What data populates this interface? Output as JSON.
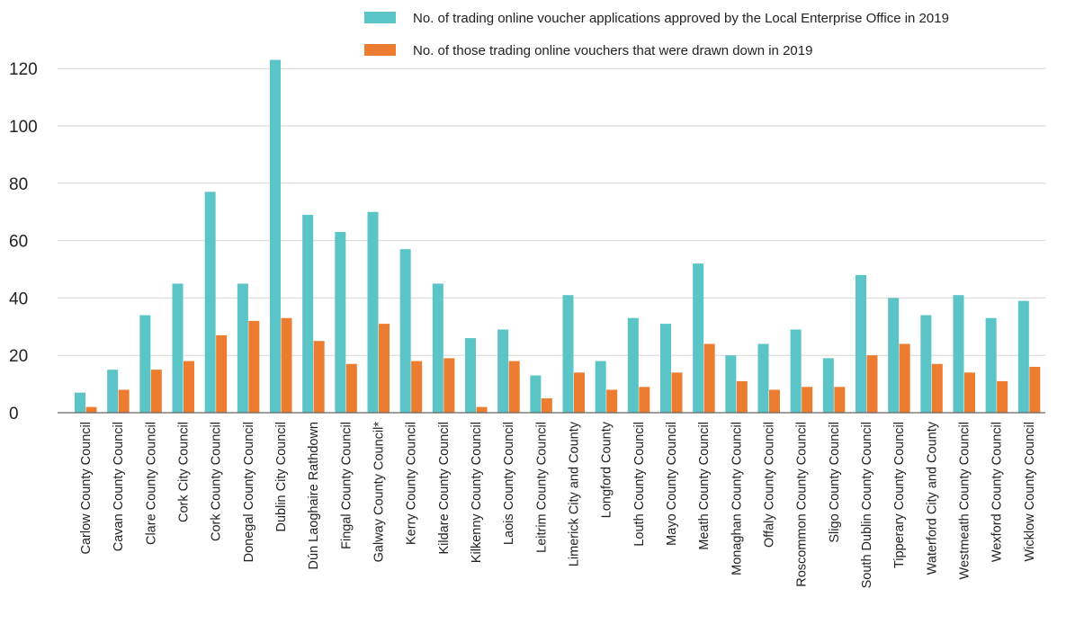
{
  "chart_data": {
    "type": "bar",
    "categories": [
      "Carlow County Council",
      "Cavan County Council",
      "Clare County Council",
      "Cork City Council",
      "Cork County Council",
      "Donegal County Council",
      "Dublin City Council",
      "Dún Laoghaire Rathdown",
      "Fingal County Council",
      "Galway County Council*",
      "Kerry County Council",
      "Kildare County Council",
      "Kilkenny County Council",
      "Laois County Council",
      "Leitrim County Council",
      "Limerick City and County",
      "Longford County",
      "Louth County Council",
      "Mayo County Council",
      "Meath County Council",
      "Monaghan County Council",
      "Offaly County Council",
      "Roscommon County Council",
      "Sligo County Council",
      "South Dublin County Council",
      "Tipperary County Council",
      "Waterford City and County",
      "Westmeath County Council",
      "Wexford County Council",
      "Wicklow County Council"
    ],
    "series": [
      {
        "name": "No. of trading online voucher applications approved by the Local Enterprise Office in 2019",
        "color": "#5bc4c6",
        "values": [
          7,
          15,
          34,
          45,
          77,
          45,
          123,
          69,
          63,
          70,
          57,
          45,
          26,
          29,
          13,
          41,
          18,
          33,
          31,
          52,
          20,
          24,
          29,
          19,
          48,
          40,
          34,
          41,
          33,
          39
        ]
      },
      {
        "name": "No. of those trading online vouchers that were drawn down in 2019",
        "color": "#ec7c30",
        "values": [
          2,
          8,
          15,
          18,
          27,
          32,
          33,
          25,
          17,
          31,
          18,
          19,
          2,
          18,
          5,
          14,
          8,
          9,
          14,
          24,
          11,
          8,
          9,
          9,
          20,
          24,
          17,
          14,
          11,
          16
        ]
      }
    ],
    "yticks": [
      "0",
      "20",
      "40",
      "60",
      "80",
      "100",
      "120"
    ],
    "ylim": [
      0,
      130
    ],
    "grid": true,
    "legend": "top-right",
    "title": "",
    "xlabel": "",
    "ylabel": ""
  }
}
